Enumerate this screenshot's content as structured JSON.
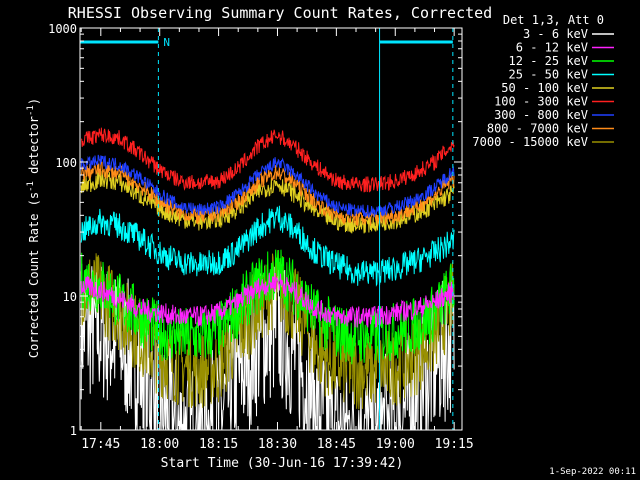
{
  "chart_data": {
    "type": "line",
    "title": "RHESSI Observing Summary Count Rates, Corrected",
    "xlabel": "Start Time (30-Jun-16 17:39:42)",
    "ylabel_main": "Corrected Count Rate (s",
    "ylabel_sup1": "-1",
    "ylabel_mid": " detector",
    "ylabel_sup2": "-1",
    "ylabel_end": ")",
    "y_scale": "log",
    "ylim": [
      1,
      1000
    ],
    "xlim": [
      "17:39:42",
      "19:17:00"
    ],
    "x_ticks": [
      "17:45",
      "18:00",
      "18:15",
      "18:30",
      "18:45",
      "19:00",
      "19:15"
    ],
    "y_ticks": [
      "1",
      "10",
      "100",
      "1000"
    ],
    "grid": false,
    "legend_title": "Det 1,3, Att 0",
    "legend_placement": "right",
    "annotations": [
      {
        "text": "N",
        "type": "night-bar",
        "from": "17:39:42",
        "to": "17:59:40"
      },
      {
        "text": "",
        "type": "night-bar",
        "from": "18:56:00",
        "to": "19:14:40"
      }
    ],
    "series": [
      {
        "name": "3 - 6 keV",
        "color": "#ffffff",
        "x": [
          "17:40",
          "17:45",
          "17:50",
          "17:55",
          "18:00",
          "18:05",
          "18:10",
          "18:15",
          "18:20",
          "18:25",
          "18:30",
          "18:35",
          "18:40",
          "18:45",
          "18:50",
          "18:55",
          "19:00",
          "19:05",
          "19:10",
          "19:15"
        ],
        "values": [
          6,
          5.5,
          4.5,
          3,
          1.5,
          1,
          1,
          1.2,
          2.5,
          4.5,
          6,
          3.5,
          1.5,
          1,
          1,
          1,
          1.2,
          1.8,
          3,
          5
        ]
      },
      {
        "name": "6 - 12 keV",
        "color": "#ff22ff",
        "x": [
          "17:40",
          "17:45",
          "17:50",
          "17:55",
          "18:00",
          "18:05",
          "18:10",
          "18:15",
          "18:20",
          "18:25",
          "18:30",
          "18:35",
          "18:40",
          "18:45",
          "18:50",
          "18:55",
          "19:00",
          "19:05",
          "19:10",
          "19:15"
        ],
        "values": [
          12,
          11,
          9.5,
          8,
          7.5,
          7,
          7,
          7.5,
          9,
          11.5,
          13,
          10.5,
          8,
          7,
          7,
          7,
          7.5,
          8,
          9,
          11
        ]
      },
      {
        "name": "12 - 25 keV",
        "color": "#00ff00",
        "x": [
          "17:40",
          "17:45",
          "17:50",
          "17:55",
          "18:00",
          "18:05",
          "18:10",
          "18:15",
          "18:20",
          "18:25",
          "18:30",
          "18:35",
          "18:40",
          "18:45",
          "18:50",
          "18:55",
          "19:00",
          "19:05",
          "19:10",
          "19:15"
        ],
        "values": [
          13,
          12,
          9,
          7,
          5.5,
          5,
          5,
          5.5,
          8,
          12,
          15,
          11,
          7,
          5.5,
          5,
          5,
          5.5,
          6,
          7.5,
          12
        ]
      },
      {
        "name": "25 - 50 keV",
        "color": "#00ffff",
        "x": [
          "17:40",
          "17:45",
          "17:50",
          "17:55",
          "18:00",
          "18:05",
          "18:10",
          "18:15",
          "18:20",
          "18:25",
          "18:30",
          "18:35",
          "18:40",
          "18:45",
          "18:50",
          "18:55",
          "19:00",
          "19:05",
          "19:10",
          "19:15"
        ],
        "values": [
          30,
          36,
          33,
          27,
          21,
          18,
          17,
          18,
          22,
          32,
          40,
          30,
          21,
          17,
          15,
          15,
          16,
          18,
          21,
          26
        ]
      },
      {
        "name": "50 - 100 keV",
        "color": "#e0d020",
        "x": [
          "17:40",
          "17:45",
          "17:50",
          "17:55",
          "18:00",
          "18:05",
          "18:10",
          "18:15",
          "18:20",
          "18:25",
          "18:30",
          "18:35",
          "18:40",
          "18:45",
          "18:50",
          "18:55",
          "19:00",
          "19:05",
          "19:10",
          "19:15"
        ],
        "values": [
          65,
          75,
          70,
          56,
          45,
          38,
          36,
          37,
          45,
          60,
          70,
          56,
          42,
          36,
          34,
          35,
          37,
          41,
          48,
          60
        ]
      },
      {
        "name": "100 - 300 keV",
        "color": "#ff2020",
        "x": [
          "17:40",
          "17:45",
          "17:50",
          "17:55",
          "18:00",
          "18:05",
          "18:10",
          "18:15",
          "18:20",
          "18:25",
          "18:30",
          "18:35",
          "18:40",
          "18:45",
          "18:50",
          "18:55",
          "19:00",
          "19:05",
          "19:10",
          "19:15"
        ],
        "values": [
          145,
          160,
          150,
          115,
          88,
          72,
          70,
          72,
          90,
          130,
          160,
          125,
          92,
          72,
          68,
          68,
          72,
          82,
          100,
          140
        ]
      },
      {
        "name": "300 - 800 keV",
        "color": "#2040ff",
        "x": [
          "17:40",
          "17:45",
          "17:50",
          "17:55",
          "18:00",
          "18:05",
          "18:10",
          "18:15",
          "18:20",
          "18:25",
          "18:30",
          "18:35",
          "18:40",
          "18:45",
          "18:50",
          "18:55",
          "19:00",
          "19:05",
          "19:10",
          "19:15"
        ],
        "values": [
          95,
          102,
          95,
          76,
          58,
          47,
          44,
          46,
          58,
          80,
          100,
          79,
          57,
          46,
          43,
          43,
          46,
          52,
          64,
          88
        ]
      },
      {
        "name": "800 - 7000 keV",
        "color": "#ff8c1a",
        "x": [
          "17:40",
          "17:45",
          "17:50",
          "17:55",
          "18:00",
          "18:05",
          "18:10",
          "18:15",
          "18:20",
          "18:25",
          "18:30",
          "18:35",
          "18:40",
          "18:45",
          "18:50",
          "18:55",
          "19:00",
          "19:05",
          "19:10",
          "19:15"
        ],
        "values": [
          82,
          88,
          82,
          66,
          51,
          42,
          39,
          41,
          51,
          70,
          85,
          68,
          49,
          40,
          38,
          38,
          40,
          45,
          56,
          76
        ]
      },
      {
        "name": "7000 - 15000 keV",
        "color": "#999000",
        "x": [
          "17:40",
          "17:45",
          "17:50",
          "17:55",
          "18:00",
          "18:05",
          "18:10",
          "18:15",
          "18:20",
          "18:25",
          "18:30",
          "18:35",
          "18:40",
          "18:45",
          "18:50",
          "18:55",
          "19:00",
          "19:05",
          "19:10",
          "19:15"
        ],
        "values": [
          12,
          10.5,
          7.5,
          5,
          3.5,
          3,
          2.8,
          3,
          5,
          8.5,
          12,
          8,
          4,
          3,
          2.8,
          2.8,
          3,
          3.5,
          5,
          10
        ]
      }
    ]
  },
  "footer": {
    "timestamp": "1-Sep-2022 00:11"
  }
}
